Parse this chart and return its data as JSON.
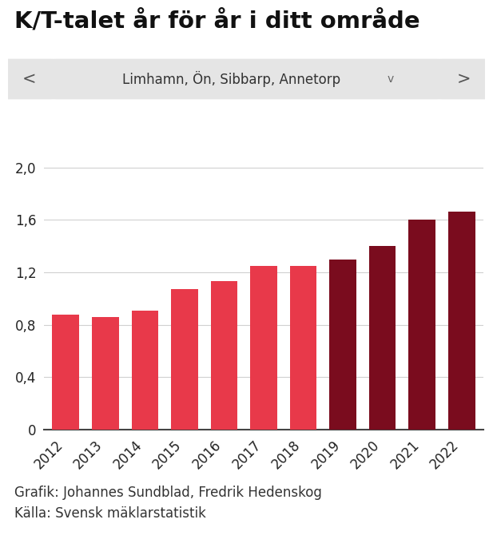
{
  "title": "K/T-talet år för år i ditt område",
  "subtitle_box_text": "Limhamn, Ön, Sibbarp, Annetorp",
  "years": [
    2012,
    2013,
    2014,
    2015,
    2016,
    2017,
    2018,
    2019,
    2020,
    2021,
    2022
  ],
  "values": [
    0.88,
    0.86,
    0.91,
    1.07,
    1.13,
    1.25,
    1.25,
    1.3,
    1.4,
    1.6,
    1.66
  ],
  "bar_colors": [
    "#e8394a",
    "#e8394a",
    "#e8394a",
    "#e8394a",
    "#e8394a",
    "#e8394a",
    "#e8394a",
    "#7a0c1e",
    "#7a0c1e",
    "#7a0c1e",
    "#7a0c1e"
  ],
  "yticks": [
    0,
    0.4,
    0.8,
    1.2,
    1.6,
    2.0
  ],
  "ytick_labels": [
    "0",
    "0,4",
    "0,8",
    "1,2",
    "1,6",
    "2,0"
  ],
  "ylim": [
    0,
    2.15
  ],
  "footer_line1": "Grafik: Johannes Sundblad, Fredrik Hedenskog",
  "footer_line2": "Källa: Svensk mäklarstatistik",
  "background_color": "#ffffff",
  "grid_color": "#d0d0d0",
  "axis_line_color": "#444444",
  "title_fontsize": 21,
  "tick_fontsize": 12,
  "footer_fontsize": 12,
  "nav_button_color": "#e5e5e5",
  "nav_text_color": "#555555",
  "nav_dropdown_chevron": "v"
}
